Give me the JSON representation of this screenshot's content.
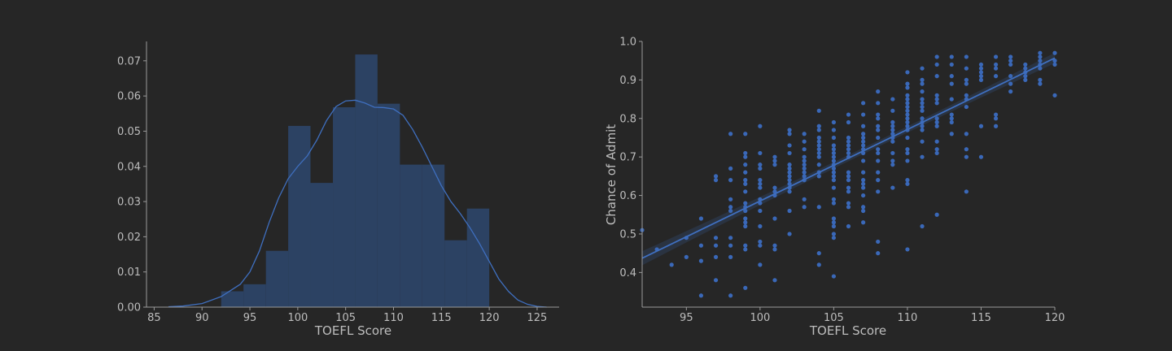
{
  "colors": {
    "background": "#262626",
    "axis": "#9a9a9a",
    "text": "#bdbdbd",
    "bar_fill": "#2c4263",
    "accent": "#3f6fbf",
    "point": "#3a68b8"
  },
  "chart_data": [
    {
      "type": "bar",
      "subtype": "histogram-with-kde",
      "xlabel": "TOEFL Score",
      "ylabel": "",
      "xlim": [
        84.2,
        127.3
      ],
      "ylim": [
        0,
        0.0755
      ],
      "xticks": [
        85,
        90,
        95,
        100,
        105,
        110,
        115,
        120,
        125
      ],
      "yticks": [
        0.0,
        0.01,
        0.02,
        0.03,
        0.04,
        0.05,
        0.06,
        0.07
      ],
      "ytick_labels": [
        "0.00",
        "0.01",
        "0.02",
        "0.03",
        "0.04",
        "0.05",
        "0.06",
        "0.07"
      ],
      "bins": [
        {
          "x0": 92.0,
          "x1": 94.33,
          "density": 0.0045
        },
        {
          "x0": 94.33,
          "x1": 96.67,
          "density": 0.0065
        },
        {
          "x0": 96.67,
          "x1": 99.0,
          "density": 0.016
        },
        {
          "x0": 99.0,
          "x1": 101.33,
          "density": 0.0515
        },
        {
          "x0": 101.33,
          "x1": 103.67,
          "density": 0.0353
        },
        {
          "x0": 103.67,
          "x1": 106.0,
          "density": 0.0568
        },
        {
          "x0": 106.0,
          "x1": 108.33,
          "density": 0.0718
        },
        {
          "x0": 108.33,
          "x1": 110.67,
          "density": 0.0578
        },
        {
          "x0": 110.67,
          "x1": 113.0,
          "density": 0.0405
        },
        {
          "x0": 113.0,
          "x1": 115.33,
          "density": 0.0405
        },
        {
          "x0": 115.33,
          "x1": 117.67,
          "density": 0.019
        },
        {
          "x0": 117.67,
          "x1": 120.0,
          "density": 0.028
        }
      ],
      "kde": {
        "x": [
          86.5,
          88,
          90,
          92,
          94,
          95,
          96,
          97,
          98,
          99,
          100,
          101,
          102,
          103,
          104,
          105,
          106,
          107,
          108,
          109,
          110,
          111,
          112,
          113,
          114,
          115,
          116,
          117,
          118,
          119,
          120,
          121,
          122,
          123,
          124,
          125,
          126
        ],
        "y": [
          0.0001,
          0.0003,
          0.001,
          0.003,
          0.0065,
          0.01,
          0.016,
          0.024,
          0.031,
          0.0365,
          0.04,
          0.043,
          0.0475,
          0.053,
          0.057,
          0.0586,
          0.0588,
          0.058,
          0.0568,
          0.0567,
          0.0563,
          0.0545,
          0.0505,
          0.0455,
          0.04,
          0.0345,
          0.03,
          0.0265,
          0.0225,
          0.018,
          0.013,
          0.008,
          0.0045,
          0.002,
          0.0008,
          0.0002,
          0.0
        ]
      }
    },
    {
      "type": "scatter",
      "subtype": "regression",
      "xlabel": "TOEFL Score",
      "ylabel": "Chance of Admit",
      "xlim": [
        92,
        120
      ],
      "ylim": [
        0.31,
        1.0
      ],
      "xticks": [
        95,
        100,
        105,
        110,
        115,
        120
      ],
      "yticks": [
        0.4,
        0.5,
        0.6,
        0.7,
        0.8,
        0.9,
        1.0
      ],
      "ytick_labels": [
        "0.4",
        "0.5",
        "0.6",
        "0.7",
        "0.8",
        "0.9",
        "1.0"
      ],
      "regression": {
        "x": [
          92,
          120
        ],
        "y": [
          0.437,
          0.957
        ]
      },
      "points": [
        [
          92,
          0.51
        ],
        [
          93,
          0.46
        ],
        [
          94,
          0.42
        ],
        [
          95,
          0.49
        ],
        [
          95,
          0.44
        ],
        [
          96,
          0.54
        ],
        [
          96,
          0.47
        ],
        [
          96,
          0.43
        ],
        [
          96,
          0.34
        ],
        [
          97,
          0.65
        ],
        [
          97,
          0.64
        ],
        [
          97,
          0.49
        ],
        [
          97,
          0.47
        ],
        [
          97,
          0.44
        ],
        [
          97,
          0.38
        ],
        [
          98,
          0.76
        ],
        [
          98,
          0.67
        ],
        [
          98,
          0.64
        ],
        [
          98,
          0.59
        ],
        [
          98,
          0.57
        ],
        [
          98,
          0.56
        ],
        [
          98,
          0.49
        ],
        [
          98,
          0.47
        ],
        [
          98,
          0.44
        ],
        [
          98,
          0.34
        ],
        [
          99,
          0.76
        ],
        [
          99,
          0.71
        ],
        [
          99,
          0.7
        ],
        [
          99,
          0.68
        ],
        [
          99,
          0.66
        ],
        [
          99,
          0.64
        ],
        [
          99,
          0.63
        ],
        [
          99,
          0.61
        ],
        [
          99,
          0.58
        ],
        [
          99,
          0.57
        ],
        [
          99,
          0.56
        ],
        [
          99,
          0.54
        ],
        [
          99,
          0.53
        ],
        [
          99,
          0.52
        ],
        [
          99,
          0.47
        ],
        [
          99,
          0.46
        ],
        [
          99,
          0.36
        ],
        [
          100,
          0.78
        ],
        [
          100,
          0.71
        ],
        [
          100,
          0.68
        ],
        [
          100,
          0.67
        ],
        [
          100,
          0.64
        ],
        [
          100,
          0.63
        ],
        [
          100,
          0.62
        ],
        [
          100,
          0.59
        ],
        [
          100,
          0.58
        ],
        [
          100,
          0.56
        ],
        [
          100,
          0.52
        ],
        [
          100,
          0.48
        ],
        [
          100,
          0.47
        ],
        [
          100,
          0.42
        ],
        [
          101,
          0.7
        ],
        [
          101,
          0.69
        ],
        [
          101,
          0.68
        ],
        [
          101,
          0.62
        ],
        [
          101,
          0.61
        ],
        [
          101,
          0.6
        ],
        [
          101,
          0.54
        ],
        [
          101,
          0.47
        ],
        [
          101,
          0.46
        ],
        [
          101,
          0.38
        ],
        [
          102,
          0.77
        ],
        [
          102,
          0.76
        ],
        [
          102,
          0.73
        ],
        [
          102,
          0.71
        ],
        [
          102,
          0.68
        ],
        [
          102,
          0.67
        ],
        [
          102,
          0.66
        ],
        [
          102,
          0.65
        ],
        [
          102,
          0.64
        ],
        [
          102,
          0.63
        ],
        [
          102,
          0.62
        ],
        [
          102,
          0.61
        ],
        [
          102,
          0.56
        ],
        [
          102,
          0.5
        ],
        [
          103,
          0.76
        ],
        [
          103,
          0.74
        ],
        [
          103,
          0.72
        ],
        [
          103,
          0.7
        ],
        [
          103,
          0.69
        ],
        [
          103,
          0.68
        ],
        [
          103,
          0.67
        ],
        [
          103,
          0.66
        ],
        [
          103,
          0.65
        ],
        [
          103,
          0.64
        ],
        [
          103,
          0.59
        ],
        [
          103,
          0.57
        ],
        [
          104,
          0.78
        ],
        [
          104,
          0.77
        ],
        [
          104,
          0.75
        ],
        [
          104,
          0.74
        ],
        [
          104,
          0.73
        ],
        [
          104,
          0.72
        ],
        [
          104,
          0.71
        ],
        [
          104,
          0.7
        ],
        [
          104,
          0.68
        ],
        [
          104,
          0.66
        ],
        [
          104,
          0.65
        ],
        [
          104,
          0.57
        ],
        [
          104,
          0.45
        ],
        [
          104,
          0.42
        ],
        [
          104,
          0.82
        ],
        [
          105,
          0.79
        ],
        [
          105,
          0.77
        ],
        [
          105,
          0.75
        ],
        [
          105,
          0.73
        ],
        [
          105,
          0.72
        ],
        [
          105,
          0.71
        ],
        [
          105,
          0.7
        ],
        [
          105,
          0.69
        ],
        [
          105,
          0.68
        ],
        [
          105,
          0.67
        ],
        [
          105,
          0.66
        ],
        [
          105,
          0.65
        ],
        [
          105,
          0.64
        ],
        [
          105,
          0.62
        ],
        [
          105,
          0.59
        ],
        [
          105,
          0.58
        ],
        [
          105,
          0.54
        ],
        [
          105,
          0.53
        ],
        [
          105,
          0.52
        ],
        [
          105,
          0.5
        ],
        [
          105,
          0.49
        ],
        [
          105,
          0.39
        ],
        [
          106,
          0.81
        ],
        [
          106,
          0.79
        ],
        [
          106,
          0.75
        ],
        [
          106,
          0.74
        ],
        [
          106,
          0.73
        ],
        [
          106,
          0.72
        ],
        [
          106,
          0.71
        ],
        [
          106,
          0.7
        ],
        [
          106,
          0.66
        ],
        [
          106,
          0.65
        ],
        [
          106,
          0.64
        ],
        [
          106,
          0.62
        ],
        [
          106,
          0.61
        ],
        [
          106,
          0.58
        ],
        [
          106,
          0.57
        ],
        [
          106,
          0.52
        ],
        [
          107,
          0.84
        ],
        [
          107,
          0.81
        ],
        [
          107,
          0.78
        ],
        [
          107,
          0.76
        ],
        [
          107,
          0.75
        ],
        [
          107,
          0.74
        ],
        [
          107,
          0.73
        ],
        [
          107,
          0.72
        ],
        [
          107,
          0.71
        ],
        [
          107,
          0.69
        ],
        [
          107,
          0.66
        ],
        [
          107,
          0.64
        ],
        [
          107,
          0.63
        ],
        [
          107,
          0.62
        ],
        [
          107,
          0.6
        ],
        [
          107,
          0.57
        ],
        [
          107,
          0.56
        ],
        [
          107,
          0.53
        ],
        [
          108,
          0.87
        ],
        [
          108,
          0.84
        ],
        [
          108,
          0.81
        ],
        [
          108,
          0.8
        ],
        [
          108,
          0.78
        ],
        [
          108,
          0.77
        ],
        [
          108,
          0.75
        ],
        [
          108,
          0.72
        ],
        [
          108,
          0.71
        ],
        [
          108,
          0.69
        ],
        [
          108,
          0.66
        ],
        [
          108,
          0.64
        ],
        [
          108,
          0.61
        ],
        [
          108,
          0.48
        ],
        [
          108,
          0.45
        ],
        [
          109,
          0.85
        ],
        [
          109,
          0.82
        ],
        [
          109,
          0.79
        ],
        [
          109,
          0.78
        ],
        [
          109,
          0.77
        ],
        [
          109,
          0.76
        ],
        [
          109,
          0.75
        ],
        [
          109,
          0.74
        ],
        [
          109,
          0.71
        ],
        [
          109,
          0.69
        ],
        [
          109,
          0.68
        ],
        [
          109,
          0.62
        ],
        [
          110,
          0.92
        ],
        [
          110,
          0.89
        ],
        [
          110,
          0.88
        ],
        [
          110,
          0.86
        ],
        [
          110,
          0.85
        ],
        [
          110,
          0.84
        ],
        [
          110,
          0.83
        ],
        [
          110,
          0.82
        ],
        [
          110,
          0.81
        ],
        [
          110,
          0.8
        ],
        [
          110,
          0.79
        ],
        [
          110,
          0.78
        ],
        [
          110,
          0.77
        ],
        [
          110,
          0.75
        ],
        [
          110,
          0.72
        ],
        [
          110,
          0.71
        ],
        [
          110,
          0.69
        ],
        [
          110,
          0.64
        ],
        [
          110,
          0.63
        ],
        [
          110,
          0.46
        ],
        [
          111,
          0.93
        ],
        [
          111,
          0.9
        ],
        [
          111,
          0.89
        ],
        [
          111,
          0.87
        ],
        [
          111,
          0.85
        ],
        [
          111,
          0.84
        ],
        [
          111,
          0.83
        ],
        [
          111,
          0.82
        ],
        [
          111,
          0.8
        ],
        [
          111,
          0.79
        ],
        [
          111,
          0.78
        ],
        [
          111,
          0.77
        ],
        [
          111,
          0.74
        ],
        [
          111,
          0.7
        ],
        [
          111,
          0.52
        ],
        [
          112,
          0.96
        ],
        [
          112,
          0.94
        ],
        [
          112,
          0.91
        ],
        [
          112,
          0.86
        ],
        [
          112,
          0.85
        ],
        [
          112,
          0.84
        ],
        [
          112,
          0.8
        ],
        [
          112,
          0.79
        ],
        [
          112,
          0.78
        ],
        [
          112,
          0.74
        ],
        [
          112,
          0.72
        ],
        [
          112,
          0.71
        ],
        [
          112,
          0.55
        ],
        [
          113,
          0.96
        ],
        [
          113,
          0.94
        ],
        [
          113,
          0.91
        ],
        [
          113,
          0.89
        ],
        [
          113,
          0.85
        ],
        [
          113,
          0.81
        ],
        [
          113,
          0.8
        ],
        [
          113,
          0.79
        ],
        [
          113,
          0.76
        ],
        [
          114,
          0.96
        ],
        [
          114,
          0.93
        ],
        [
          114,
          0.9
        ],
        [
          114,
          0.89
        ],
        [
          114,
          0.86
        ],
        [
          114,
          0.85
        ],
        [
          114,
          0.83
        ],
        [
          114,
          0.76
        ],
        [
          114,
          0.72
        ],
        [
          114,
          0.7
        ],
        [
          114,
          0.61
        ],
        [
          115,
          0.94
        ],
        [
          115,
          0.93
        ],
        [
          115,
          0.92
        ],
        [
          115,
          0.91
        ],
        [
          115,
          0.9
        ],
        [
          115,
          0.78
        ],
        [
          115,
          0.7
        ],
        [
          116,
          0.96
        ],
        [
          116,
          0.94
        ],
        [
          116,
          0.93
        ],
        [
          116,
          0.91
        ],
        [
          116,
          0.81
        ],
        [
          116,
          0.8
        ],
        [
          116,
          0.78
        ],
        [
          117,
          0.96
        ],
        [
          117,
          0.95
        ],
        [
          117,
          0.94
        ],
        [
          117,
          0.91
        ],
        [
          117,
          0.89
        ],
        [
          117,
          0.87
        ],
        [
          118,
          0.94
        ],
        [
          118,
          0.93
        ],
        [
          118,
          0.92
        ],
        [
          118,
          0.91
        ],
        [
          118,
          0.9
        ],
        [
          119,
          0.97
        ],
        [
          119,
          0.96
        ],
        [
          119,
          0.95
        ],
        [
          119,
          0.94
        ],
        [
          119,
          0.93
        ],
        [
          119,
          0.9
        ],
        [
          119,
          0.89
        ],
        [
          120,
          0.97
        ],
        [
          120,
          0.95
        ],
        [
          120,
          0.94
        ],
        [
          120,
          0.86
        ]
      ]
    }
  ]
}
